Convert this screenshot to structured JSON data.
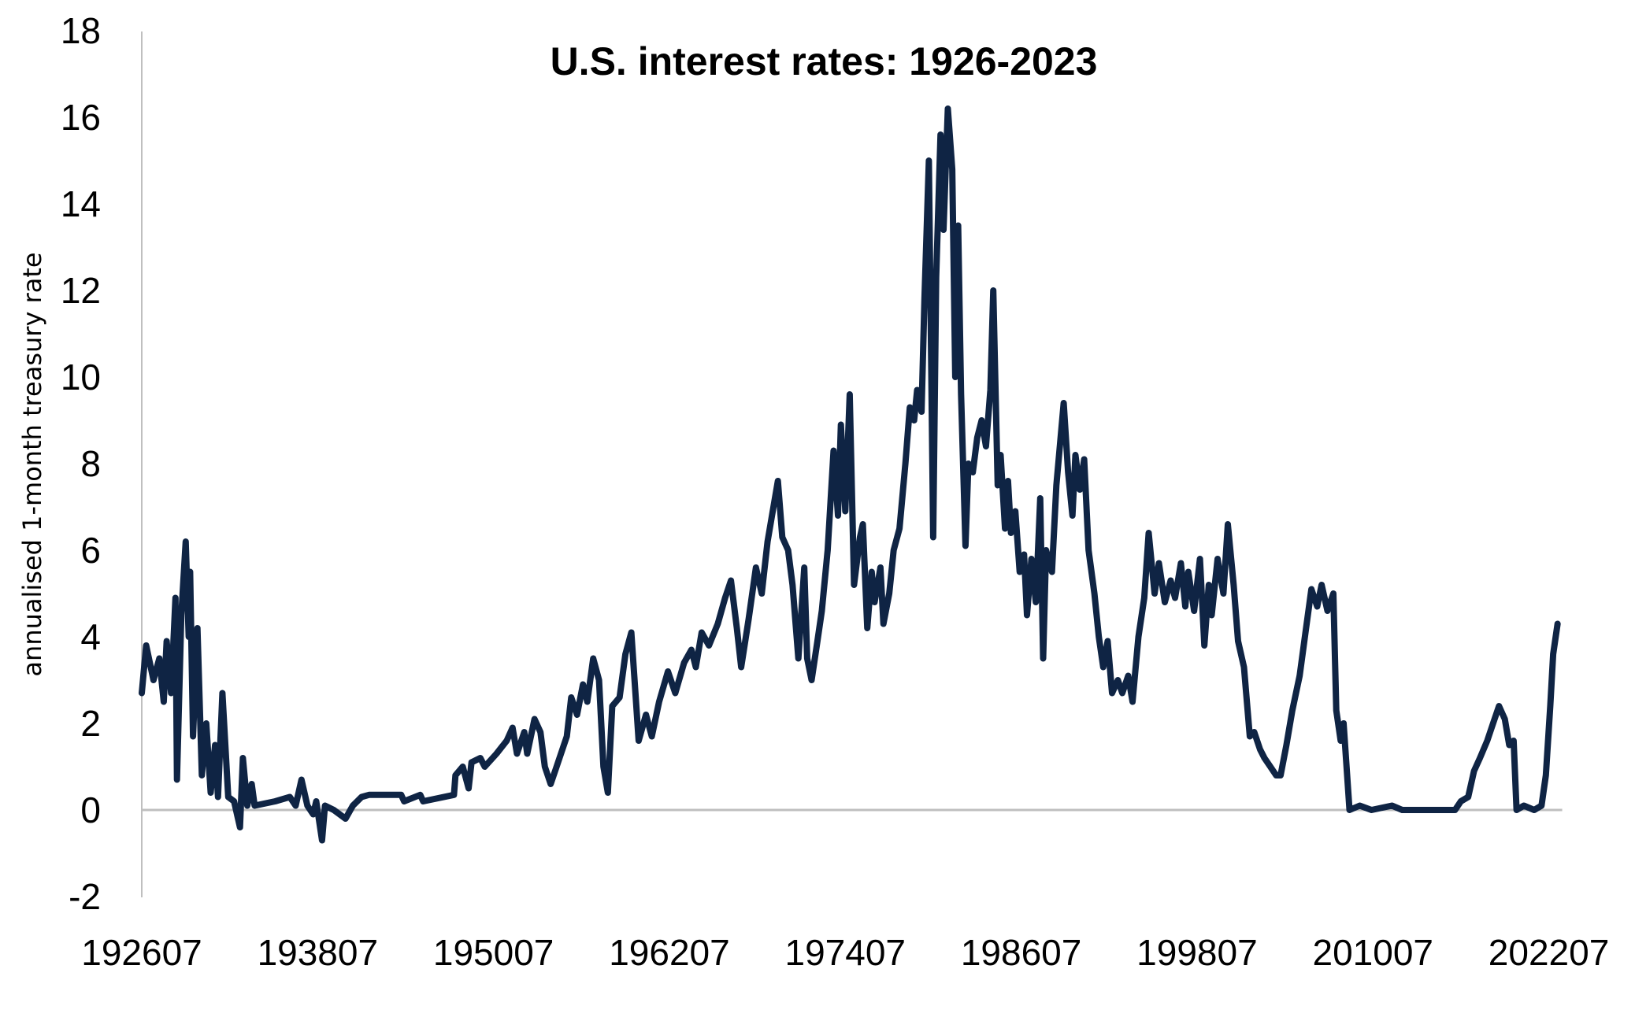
{
  "chart_data": {
    "type": "line",
    "title": "U.S. interest rates: 1926-2023",
    "xlabel": "",
    "ylabel": "annualised 1-month treasury rate",
    "ylim": [
      -2,
      18
    ],
    "yticks": [
      "18",
      "16",
      "14",
      "12",
      "10",
      "8",
      "6",
      "4",
      "2",
      "0",
      "-2"
    ],
    "ytick_values": [
      18,
      16,
      14,
      12,
      10,
      8,
      6,
      4,
      2,
      0,
      -2
    ],
    "xticks": [
      "192607",
      "193807",
      "195007",
      "196207",
      "197407",
      "198607",
      "199807",
      "201007",
      "202207"
    ],
    "xtick_values": [
      1926.5,
      1938.5,
      1950.5,
      1962.5,
      1974.5,
      1986.5,
      1998.5,
      2010.5,
      2022.5
    ],
    "xlim": [
      1926.5,
      2023.2
    ],
    "grid": false,
    "zero_line": true,
    "series": [
      {
        "name": "1-month treasury rate",
        "color": "#0f2444",
        "x": [
          1926.5,
          1926.8,
          1927.3,
          1927.7,
          1928.0,
          1928.2,
          1928.5,
          1928.8,
          1928.9,
          1929.2,
          1929.5,
          1929.7,
          1929.8,
          1930.0,
          1930.3,
          1930.6,
          1930.9,
          1931.2,
          1931.5,
          1931.7,
          1932.0,
          1932.4,
          1932.8,
          1933.2,
          1933.4,
          1933.7,
          1934.0,
          1934.2,
          1935.6,
          1936.6,
          1937.0,
          1937.4,
          1937.8,
          1938.2,
          1938.4,
          1938.8,
          1939.0,
          1939.6,
          1940.4,
          1940.9,
          1941.5,
          1942.0,
          1944.2,
          1944.4,
          1945.5,
          1945.7,
          1947.8,
          1947.9,
          1948.4,
          1948.8,
          1949.0,
          1949.6,
          1949.9,
          1950.7,
          1951.4,
          1951.8,
          1952.1,
          1952.6,
          1952.8,
          1953.3,
          1953.7,
          1954.0,
          1954.4,
          1954.8,
          1955.5,
          1955.8,
          1956.2,
          1956.6,
          1956.9,
          1957.3,
          1957.7,
          1958.0,
          1958.3,
          1958.6,
          1959.1,
          1959.5,
          1959.9,
          1960.2,
          1960.4,
          1960.9,
          1961.3,
          1961.8,
          1962.4,
          1962.9,
          1963.5,
          1964.0,
          1964.3,
          1964.7,
          1965.2,
          1965.8,
          1966.3,
          1966.7,
          1967.1,
          1967.4,
          1967.9,
          1968.4,
          1968.8,
          1969.2,
          1969.5,
          1969.9,
          1970.2,
          1970.6,
          1970.9,
          1971.3,
          1971.7,
          1971.9,
          1972.2,
          1972.6,
          1972.9,
          1973.3,
          1973.7,
          1974.0,
          1974.2,
          1974.5,
          1974.8,
          1975.1,
          1975.5,
          1975.7,
          1976.0,
          1976.3,
          1976.5,
          1976.9,
          1977.1,
          1977.5,
          1977.8,
          1978.2,
          1978.6,
          1978.9,
          1979.2,
          1979.4,
          1979.7,
          1979.9,
          1980.2,
          1980.5,
          1980.7,
          1981.0,
          1981.2,
          1981.5,
          1981.8,
          1982.0,
          1982.2,
          1982.4,
          1982.7,
          1982.9,
          1983.2,
          1983.5,
          1983.8,
          1984.1,
          1984.4,
          1984.6,
          1984.9,
          1985.1,
          1985.4,
          1985.6,
          1985.8,
          1986.1,
          1986.4,
          1986.7,
          1986.9,
          1987.2,
          1987.5,
          1987.8,
          1988.0,
          1988.2,
          1988.6,
          1988.9,
          1989.4,
          1989.7,
          1990.0,
          1990.2,
          1990.5,
          1990.8,
          1991.1,
          1991.5,
          1991.8,
          1992.1,
          1992.4,
          1992.7,
          1993.1,
          1993.4,
          1993.8,
          1994.1,
          1994.5,
          1994.9,
          1995.2,
          1995.6,
          1995.9,
          1996.3,
          1996.7,
          1997.0,
          1997.4,
          1997.7,
          1997.9,
          1998.3,
          1998.7,
          1999.0,
          1999.3,
          1999.5,
          1999.9,
          2000.3,
          2000.6,
          2001.0,
          2001.3,
          2001.7,
          2002.1,
          2002.4,
          2002.8,
          2003.1,
          2003.5,
          2003.9,
          2004.2,
          2004.6,
          2005.0,
          2005.5,
          2005.9,
          2006.3,
          2006.7,
          2007.0,
          2007.4,
          2007.8,
          2008.0,
          2008.3,
          2008.5,
          2008.9,
          2009.6,
          2010.4,
          2011.8,
          2012.5,
          2016.1,
          2016.5,
          2017.0,
          2017.4,
          2017.8,
          2018.3,
          2018.7,
          2019.1,
          2019.5,
          2019.8,
          2020.1,
          2020.3,
          2020.8,
          2021.5,
          2022.0,
          2022.3,
          2022.6,
          2022.8,
          2023.1
        ],
        "y": [
          2.7,
          3.8,
          3.0,
          3.5,
          2.5,
          3.9,
          2.7,
          4.9,
          0.7,
          4.5,
          6.2,
          4.0,
          5.5,
          1.7,
          4.2,
          0.8,
          2.0,
          0.4,
          1.5,
          0.3,
          2.7,
          0.3,
          0.2,
          -0.4,
          1.2,
          0.1,
          0.6,
          0.1,
          0.2,
          0.3,
          0.1,
          0.7,
          0.1,
          -0.1,
          0.2,
          -0.7,
          0.1,
          0.0,
          -0.2,
          0.1,
          0.3,
          0.35,
          0.35,
          0.2,
          0.35,
          0.2,
          0.35,
          0.8,
          1.0,
          0.5,
          1.1,
          1.2,
          1.0,
          1.3,
          1.6,
          1.9,
          1.3,
          1.8,
          1.3,
          2.1,
          1.8,
          1.0,
          0.6,
          1.0,
          1.7,
          2.6,
          2.2,
          2.9,
          2.5,
          3.5,
          3.0,
          1.0,
          0.4,
          2.4,
          2.6,
          3.6,
          4.1,
          2.6,
          1.6,
          2.2,
          1.7,
          2.5,
          3.2,
          2.7,
          3.4,
          3.7,
          3.3,
          4.1,
          3.8,
          4.3,
          4.9,
          5.3,
          4.2,
          3.3,
          4.4,
          5.6,
          5.0,
          6.2,
          6.8,
          7.6,
          6.3,
          6.0,
          5.2,
          3.5,
          5.6,
          3.5,
          3.0,
          3.9,
          4.6,
          6.0,
          8.3,
          6.8,
          8.9,
          6.9,
          9.6,
          5.2,
          6.3,
          6.6,
          4.2,
          5.5,
          4.8,
          5.6,
          4.3,
          5.0,
          6.0,
          6.5,
          8.0,
          9.3,
          9.0,
          9.7,
          9.2,
          11.8,
          15.0,
          6.3,
          12.3,
          15.6,
          13.4,
          16.2,
          14.8,
          10.0,
          13.5,
          9.6,
          6.1,
          8.0,
          7.8,
          8.6,
          9.0,
          8.4,
          9.7,
          12.0,
          7.5,
          8.2,
          6.5,
          7.6,
          6.4,
          6.9,
          5.5,
          5.9,
          4.5,
          5.8,
          4.8,
          7.2,
          3.5,
          6.0,
          5.5,
          7.5,
          9.4,
          7.8,
          6.8,
          8.2,
          7.4,
          8.1,
          6.0,
          5.0,
          4.0,
          3.3,
          3.9,
          2.7,
          3.0,
          2.7,
          3.1,
          2.5,
          4.0,
          4.9,
          6.4,
          5.0,
          5.7,
          4.8,
          5.3,
          4.9,
          5.7,
          4.7,
          5.5,
          4.6,
          5.8,
          3.8,
          5.2,
          4.5,
          5.8,
          5.0,
          6.6,
          5.2,
          3.9,
          3.3,
          1.7,
          1.8,
          1.4,
          1.2,
          1.0,
          0.8,
          0.8,
          1.5,
          2.3,
          3.1,
          4.1,
          5.1,
          4.7,
          5.2,
          4.6,
          5.0,
          2.3,
          1.6,
          2.0,
          0.0,
          0.1,
          0.0,
          0.1,
          0.0,
          0.0,
          0.2,
          0.3,
          0.9,
          1.2,
          1.6,
          2.0,
          2.4,
          2.1,
          1.5,
          1.6,
          0.0,
          0.1,
          0.0,
          0.1,
          0.8,
          2.4,
          3.6,
          4.3
        ]
      }
    ]
  }
}
